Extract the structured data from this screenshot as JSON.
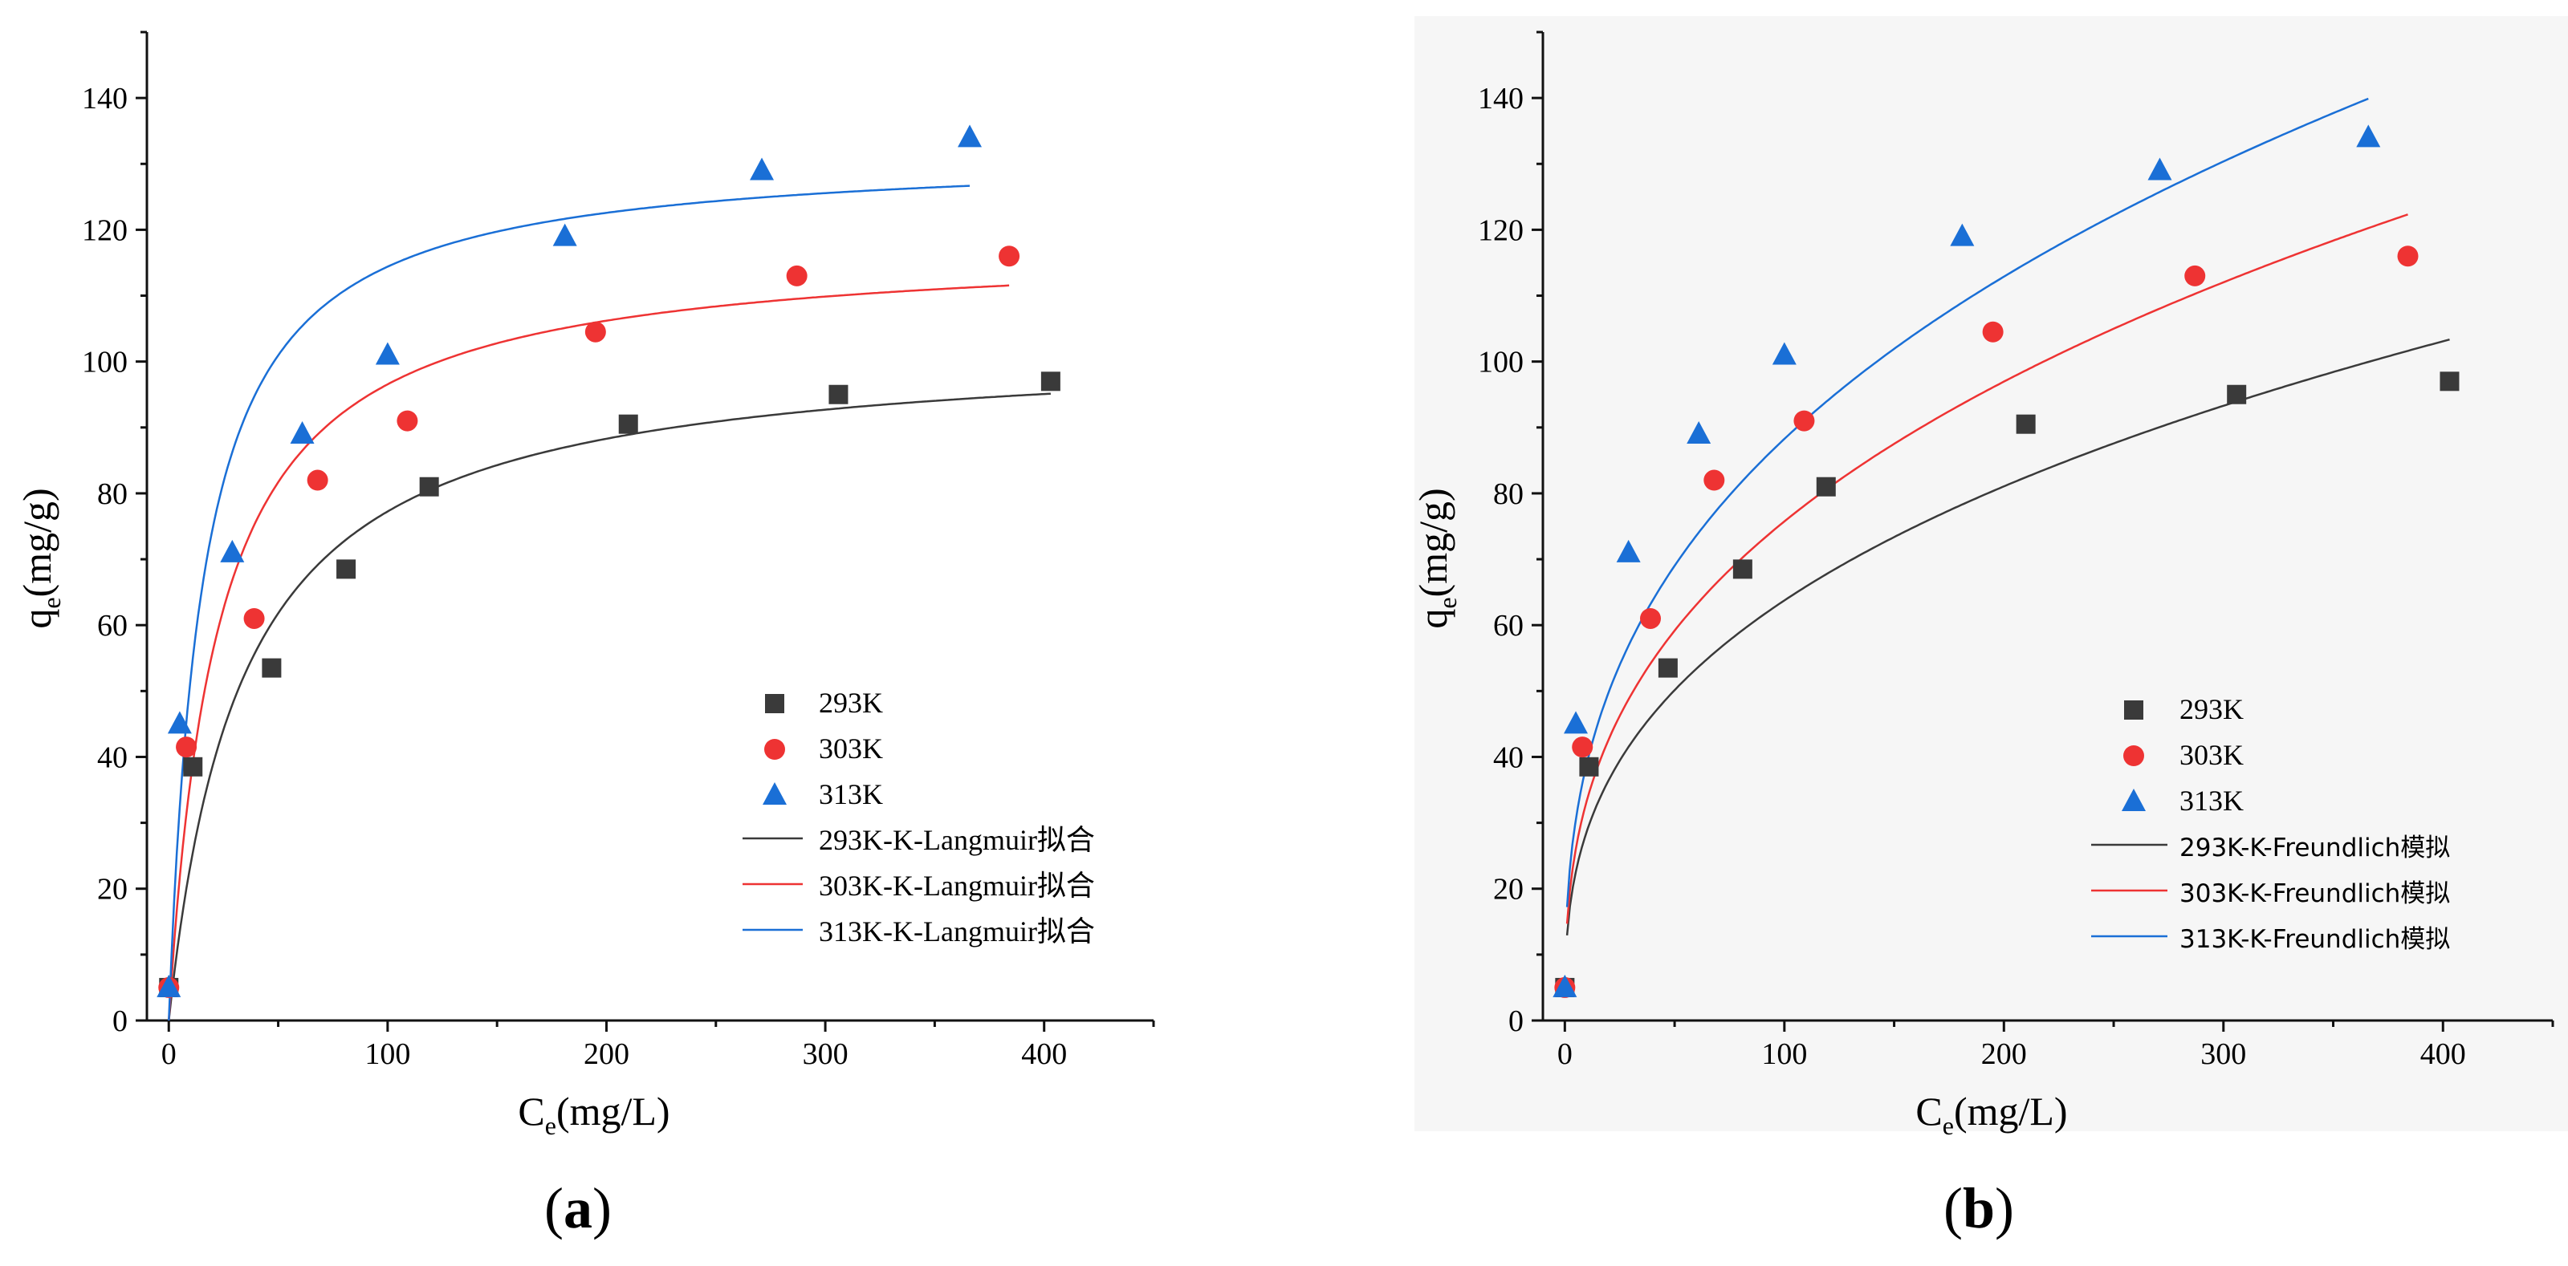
{
  "panels": [
    {
      "id": "a",
      "label_open": "(",
      "label_letter": "a",
      "label_close": ")",
      "xlabel": "C",
      "xlabel_sub": "e",
      "xlabel_rest": "(mg/L)",
      "ylabel": "q",
      "ylabel_sub": "e",
      "ylabel_rest": "(mg/g)",
      "legend_entries": [
        "293K",
        "303K",
        "313K",
        "293K-K-Langmuir拟合",
        "303K-K-Langmuir拟合",
        "313K-K-Langmuir拟合"
      ]
    },
    {
      "id": "b",
      "label_open": "(",
      "label_letter": "b",
      "label_close": ")",
      "xlabel": "C",
      "xlabel_sub": "e",
      "xlabel_rest": "(mg/L)",
      "ylabel": "q",
      "ylabel_sub": "e",
      "ylabel_rest": "(mg/g)",
      "legend_entries": [
        "293K",
        "303K",
        "313K",
        "293K-K-Freundlich模拟",
        "303K-K-Freundlich模拟",
        "313K-K-Freundlich模拟"
      ]
    }
  ],
  "colors": {
    "293K": "#3a3a3a",
    "303K": "#ee3333",
    "313K": "#1a6fd6"
  },
  "chart_data": [
    {
      "type": "scatter",
      "title": "(a)",
      "xlabel": "Ce(mg/L)",
      "ylabel": "qe(mg/g)",
      "xlim": [
        -10,
        450
      ],
      "ylim": [
        0,
        150
      ],
      "xticks": [
        0,
        100,
        200,
        300,
        400
      ],
      "yticks": [
        0,
        20,
        40,
        60,
        80,
        100,
        120,
        140
      ],
      "series": [
        {
          "name": "293K",
          "marker": "square",
          "x": [
            0,
            11,
            47,
            81,
            119,
            210,
            306,
            403
          ],
          "y": [
            5,
            38.5,
            53.5,
            68.5,
            81,
            90.5,
            95,
            97
          ]
        },
        {
          "name": "303K",
          "marker": "circle",
          "x": [
            0,
            8,
            39,
            68,
            109,
            195,
            287,
            384
          ],
          "y": [
            5,
            41.5,
            61,
            82,
            91,
            104.5,
            113,
            116
          ]
        },
        {
          "name": "313K",
          "marker": "triangle",
          "x": [
            0,
            5,
            29,
            61,
            100,
            181,
            271,
            366
          ],
          "y": [
            5,
            45,
            71,
            89,
            101,
            119,
            129,
            134
          ]
        }
      ],
      "fits": [
        {
          "name": "293K-K-Langmuir拟合",
          "model": "langmuir",
          "qmax": 103,
          "KL": 0.03,
          "x_end": 403
        },
        {
          "name": "303K-K-Langmuir拟合",
          "model": "langmuir",
          "qmax": 118,
          "KL": 0.045,
          "x_end": 384
        },
        {
          "name": "313K-K-Langmuir拟合",
          "model": "langmuir",
          "qmax": 132,
          "KL": 0.065,
          "x_end": 366
        }
      ],
      "legend": "center-right"
    },
    {
      "type": "scatter",
      "title": "(b)",
      "xlabel": "Ce(mg/L)",
      "ylabel": "qe(mg/g)",
      "xlim": [
        -10,
        450
      ],
      "ylim": [
        0,
        150
      ],
      "xticks": [
        0,
        100,
        200,
        300,
        400
      ],
      "yticks": [
        0,
        20,
        40,
        60,
        80,
        100,
        120,
        140
      ],
      "series": [
        {
          "name": "293K",
          "marker": "square",
          "x": [
            0,
            11,
            47,
            81,
            119,
            210,
            306,
            403
          ],
          "y": [
            5,
            38.5,
            53.5,
            68.5,
            81,
            90.5,
            95,
            97
          ]
        },
        {
          "name": "303K",
          "marker": "circle",
          "x": [
            0,
            8,
            39,
            68,
            109,
            195,
            287,
            384
          ],
          "y": [
            5,
            41.5,
            61,
            82,
            91,
            104.5,
            113,
            116
          ]
        },
        {
          "name": "313K",
          "marker": "triangle",
          "x": [
            0,
            5,
            29,
            61,
            100,
            181,
            271,
            366
          ],
          "y": [
            5,
            45,
            71,
            89,
            101,
            119,
            129,
            134
          ]
        }
      ],
      "fits": [
        {
          "name": "293K-K-Freundlich模拟",
          "model": "freundlich",
          "KF": 12.92,
          "n_inv": 0.3466,
          "x_end": 403
        },
        {
          "name": "303K-K-Freundlich模拟",
          "model": "freundlich",
          "KF": 14.68,
          "n_inv": 0.3563,
          "x_end": 384
        },
        {
          "name": "313K-K-Freundlich模拟",
          "model": "freundlich",
          "KF": 17.21,
          "n_inv": 0.355,
          "x_end": 366
        }
      ],
      "legend": "center-right"
    }
  ]
}
